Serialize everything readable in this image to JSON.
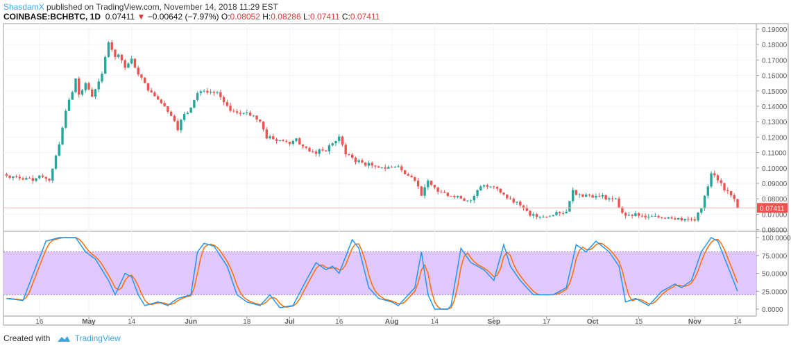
{
  "header": {
    "author": "ShasdamX",
    "published": "published on TradingView.com, November 14, 2018 11:29 EST",
    "symbol": "COINBASE:BCHBTC, 1D",
    "last": "0.07411",
    "change_arrow": "▼",
    "change": "−0.00642 (−7.97%)",
    "open_label": "O:",
    "open": "0.08052",
    "high_label": "H:",
    "high": "0.08286",
    "low_label": "L:",
    "low": "0.07411",
    "close_label": "C:",
    "close": "0.07411"
  },
  "footer": {
    "created_with": "Created with",
    "brand": "TradingView"
  },
  "colors": {
    "up": "#26a69a",
    "down": "#ef5350",
    "k": "#2196f3",
    "d": "#ff6d00",
    "band": "#e1c8fc",
    "last_price": "#ef5350"
  },
  "chart_data": [
    {
      "type": "candlestick",
      "title": "COINBASE:BCHBTC, 1D",
      "ylim": [
        0.06,
        0.19
      ],
      "yticks": [
        "0.19000",
        "0.18000",
        "0.17000",
        "0.16000",
        "0.15000",
        "0.14000",
        "0.13000",
        "0.12000",
        "0.11000",
        "0.10000",
        "0.09000",
        "0.08000",
        "0.07000",
        "0.06000"
      ],
      "last_price_label": "0.07411",
      "xticks": [
        "16",
        "May",
        "14",
        "Jun",
        "18",
        "Jul",
        "16",
        "Aug",
        "14",
        "Sep",
        "17",
        "Oct",
        "15",
        "Nov",
        "14"
      ],
      "xtick_dates": [
        "2018-04-16",
        "2018-05-01",
        "2018-05-14",
        "2018-06-01",
        "2018-06-18",
        "2018-07-01",
        "2018-07-16",
        "2018-08-01",
        "2018-08-14",
        "2018-09-01",
        "2018-09-17",
        "2018-10-01",
        "2018-10-15",
        "2018-11-01",
        "2018-11-14"
      ],
      "close_anchors": [
        [
          "2018-04-06",
          0.095
        ],
        [
          "2018-04-14",
          0.093
        ],
        [
          "2018-04-17",
          0.094
        ],
        [
          "2018-04-19",
          0.092
        ],
        [
          "2018-04-21",
          0.108
        ],
        [
          "2018-04-23",
          0.125
        ],
        [
          "2018-04-24",
          0.137
        ],
        [
          "2018-04-26",
          0.15
        ],
        [
          "2018-04-27",
          0.158
        ],
        [
          "2018-04-28",
          0.147
        ],
        [
          "2018-04-30",
          0.155
        ],
        [
          "2018-05-02",
          0.147
        ],
        [
          "2018-05-04",
          0.155
        ],
        [
          "2018-05-05",
          0.16
        ],
        [
          "2018-05-06",
          0.172
        ],
        [
          "2018-05-07",
          0.182
        ],
        [
          "2018-05-09",
          0.172
        ],
        [
          "2018-05-10",
          0.175
        ],
        [
          "2018-05-12",
          0.165
        ],
        [
          "2018-05-14",
          0.17
        ],
        [
          "2018-05-16",
          0.16
        ],
        [
          "2018-05-18",
          0.155
        ],
        [
          "2018-05-20",
          0.148
        ],
        [
          "2018-05-22",
          0.145
        ],
        [
          "2018-05-24",
          0.14
        ],
        [
          "2018-05-26",
          0.135
        ],
        [
          "2018-05-28",
          0.126
        ],
        [
          "2018-05-30",
          0.135
        ],
        [
          "2018-06-01",
          0.138
        ],
        [
          "2018-06-03",
          0.15
        ],
        [
          "2018-06-06",
          0.15
        ],
        [
          "2018-06-09",
          0.148
        ],
        [
          "2018-06-12",
          0.14
        ],
        [
          "2018-06-15",
          0.135
        ],
        [
          "2018-06-18",
          0.136
        ],
        [
          "2018-06-20",
          0.134
        ],
        [
          "2018-06-22",
          0.13
        ],
        [
          "2018-06-24",
          0.12
        ],
        [
          "2018-06-27",
          0.118
        ],
        [
          "2018-07-01",
          0.117
        ],
        [
          "2018-07-03",
          0.118
        ],
        [
          "2018-07-06",
          0.112
        ],
        [
          "2018-07-09",
          0.11
        ],
        [
          "2018-07-12",
          0.112
        ],
        [
          "2018-07-15",
          0.118
        ],
        [
          "2018-07-16",
          0.12
        ],
        [
          "2018-07-18",
          0.11
        ],
        [
          "2018-07-21",
          0.105
        ],
        [
          "2018-07-25",
          0.102
        ],
        [
          "2018-07-30",
          0.1
        ],
        [
          "2018-08-03",
          0.101
        ],
        [
          "2018-08-05",
          0.096
        ],
        [
          "2018-08-08",
          0.093
        ],
        [
          "2018-08-10",
          0.082
        ],
        [
          "2018-08-12",
          0.091
        ],
        [
          "2018-08-15",
          0.085
        ],
        [
          "2018-08-20",
          0.081
        ],
        [
          "2018-08-25",
          0.079
        ],
        [
          "2018-08-28",
          0.088
        ],
        [
          "2018-09-01",
          0.088
        ],
        [
          "2018-09-04",
          0.082
        ],
        [
          "2018-09-08",
          0.078
        ],
        [
          "2018-09-12",
          0.069
        ],
        [
          "2018-09-17",
          0.068
        ],
        [
          "2018-09-20",
          0.07
        ],
        [
          "2018-09-23",
          0.072
        ],
        [
          "2018-09-25",
          0.085
        ],
        [
          "2018-09-27",
          0.083
        ],
        [
          "2018-10-01",
          0.082
        ],
        [
          "2018-10-05",
          0.081
        ],
        [
          "2018-10-08",
          0.079
        ],
        [
          "2018-10-10",
          0.07
        ],
        [
          "2018-10-15",
          0.069
        ],
        [
          "2018-10-20",
          0.068
        ],
        [
          "2018-10-25",
          0.068
        ],
        [
          "2018-10-29",
          0.067
        ],
        [
          "2018-11-01",
          0.067
        ],
        [
          "2018-11-03",
          0.075
        ],
        [
          "2018-11-05",
          0.088
        ],
        [
          "2018-11-06",
          0.097
        ],
        [
          "2018-11-08",
          0.092
        ],
        [
          "2018-11-10",
          0.087
        ],
        [
          "2018-11-12",
          0.083
        ],
        [
          "2018-11-13",
          0.08052
        ],
        [
          "2018-11-14",
          0.07411
        ]
      ]
    },
    {
      "type": "line",
      "indicator": "Stochastic RSI",
      "ylim": [
        0,
        100
      ],
      "band": [
        20,
        80
      ],
      "yticks": [
        "100.0000",
        "75.0000",
        "50.0000",
        "25.0000",
        "0.0000"
      ],
      "k_anchors": [
        [
          "2018-04-06",
          15
        ],
        [
          "2018-04-11",
          12
        ],
        [
          "2018-04-15",
          60
        ],
        [
          "2018-04-18",
          95
        ],
        [
          "2018-04-22",
          100
        ],
        [
          "2018-04-27",
          100
        ],
        [
          "2018-04-30",
          80
        ],
        [
          "2018-05-03",
          70
        ],
        [
          "2018-05-07",
          40
        ],
        [
          "2018-05-09",
          20
        ],
        [
          "2018-05-12",
          50
        ],
        [
          "2018-05-14",
          45
        ],
        [
          "2018-05-16",
          20
        ],
        [
          "2018-05-18",
          5
        ],
        [
          "2018-05-22",
          10
        ],
        [
          "2018-05-25",
          5
        ],
        [
          "2018-05-28",
          15
        ],
        [
          "2018-06-01",
          20
        ],
        [
          "2018-06-03",
          80
        ],
        [
          "2018-06-05",
          92
        ],
        [
          "2018-06-08",
          88
        ],
        [
          "2018-06-12",
          60
        ],
        [
          "2018-06-15",
          20
        ],
        [
          "2018-06-18",
          10
        ],
        [
          "2018-06-22",
          5
        ],
        [
          "2018-06-25",
          20
        ],
        [
          "2018-06-28",
          2
        ],
        [
          "2018-07-02",
          5
        ],
        [
          "2018-07-06",
          40
        ],
        [
          "2018-07-09",
          65
        ],
        [
          "2018-07-12",
          55
        ],
        [
          "2018-07-14",
          60
        ],
        [
          "2018-07-16",
          50
        ],
        [
          "2018-07-20",
          97
        ],
        [
          "2018-07-22",
          85
        ],
        [
          "2018-07-25",
          30
        ],
        [
          "2018-07-28",
          15
        ],
        [
          "2018-08-01",
          10
        ],
        [
          "2018-08-03",
          5
        ],
        [
          "2018-08-06",
          20
        ],
        [
          "2018-08-08",
          30
        ],
        [
          "2018-08-10",
          80
        ],
        [
          "2018-08-12",
          20
        ],
        [
          "2018-08-14",
          0
        ],
        [
          "2018-08-18",
          0
        ],
        [
          "2018-08-19",
          5
        ],
        [
          "2018-08-22",
          85
        ],
        [
          "2018-08-25",
          65
        ],
        [
          "2018-08-29",
          55
        ],
        [
          "2018-09-01",
          40
        ],
        [
          "2018-09-04",
          90
        ],
        [
          "2018-09-06",
          60
        ],
        [
          "2018-09-09",
          40
        ],
        [
          "2018-09-13",
          20
        ],
        [
          "2018-09-16",
          20
        ],
        [
          "2018-09-19",
          20
        ],
        [
          "2018-09-23",
          30
        ],
        [
          "2018-09-26",
          90
        ],
        [
          "2018-09-29",
          80
        ],
        [
          "2018-10-02",
          95
        ],
        [
          "2018-10-06",
          80
        ],
        [
          "2018-10-09",
          60
        ],
        [
          "2018-10-11",
          10
        ],
        [
          "2018-10-14",
          15
        ],
        [
          "2018-10-18",
          5
        ],
        [
          "2018-10-22",
          25
        ],
        [
          "2018-10-26",
          35
        ],
        [
          "2018-10-28",
          30
        ],
        [
          "2018-10-31",
          40
        ],
        [
          "2018-11-03",
          80
        ],
        [
          "2018-11-06",
          100
        ],
        [
          "2018-11-08",
          95
        ],
        [
          "2018-11-11",
          60
        ],
        [
          "2018-11-14",
          25
        ]
      ]
    }
  ]
}
